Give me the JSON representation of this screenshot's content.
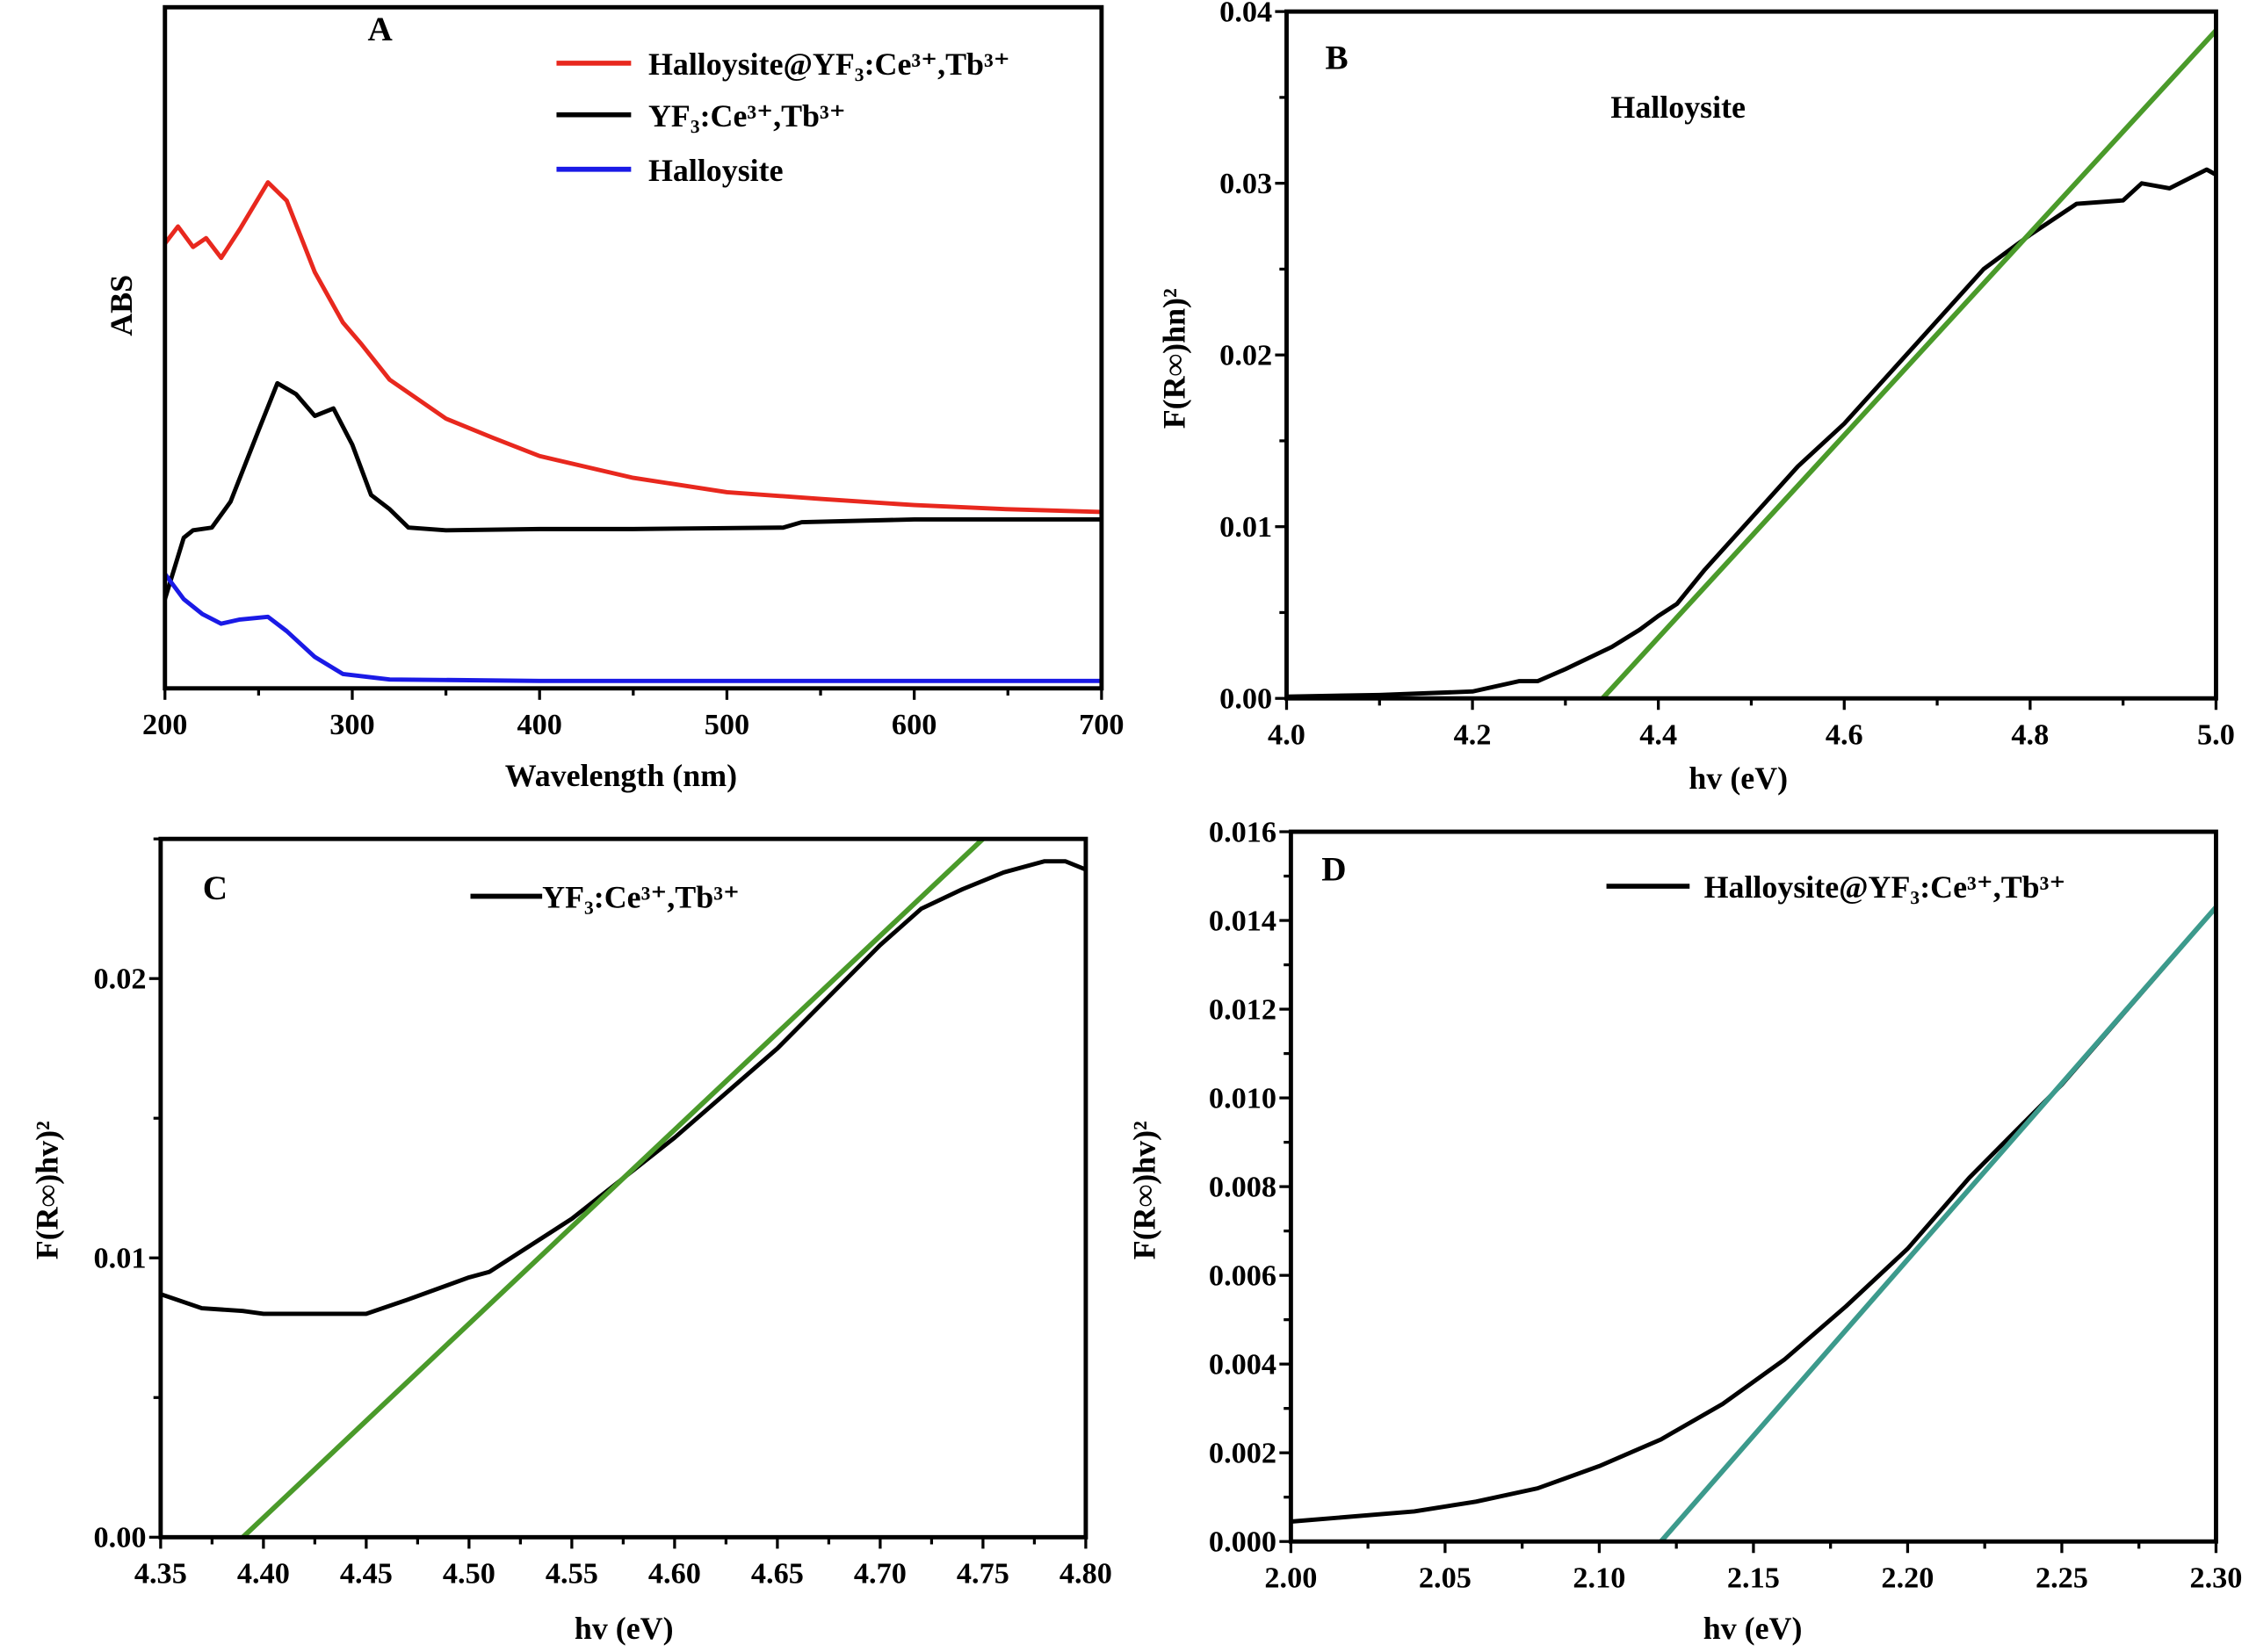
{
  "chart_data": [
    {
      "panel": "A",
      "type": "line",
      "xlabel": "Wavelength (nm)",
      "ylabel": "ABS",
      "xlim": [
        200,
        700
      ],
      "ylim": [
        0,
        1
      ],
      "y_ticks_shown": false,
      "x_ticks": [
        200,
        300,
        400,
        500,
        600,
        700
      ],
      "x_tick_labels": [
        "200",
        "300",
        "400",
        "500",
        "600",
        "700"
      ],
      "x_minor_step": 50,
      "grid": false,
      "legend_position": "top-right",
      "series": [
        {
          "name": "Halloysite@YF₃:Ce³⁺,Tb³⁺",
          "color": "#e8281e",
          "x": [
            200,
            207,
            215,
            222,
            230,
            240,
            255,
            265,
            280,
            295,
            305,
            320,
            350,
            375,
            400,
            450,
            500,
            550,
            600,
            650,
            700
          ],
          "y": [
            0.653,
            0.678,
            0.648,
            0.661,
            0.632,
            0.674,
            0.743,
            0.716,
            0.611,
            0.537,
            0.505,
            0.453,
            0.396,
            0.368,
            0.341,
            0.309,
            0.288,
            0.278,
            0.269,
            0.263,
            0.259
          ]
        },
        {
          "name": "YF₃:Ce³⁺,Tb³⁺",
          "color": "#000000",
          "x": [
            200,
            210,
            215,
            225,
            235,
            250,
            260,
            270,
            280,
            290,
            300,
            310,
            320,
            330,
            350,
            400,
            450,
            530,
            540,
            600,
            700
          ],
          "y": [
            0.131,
            0.221,
            0.232,
            0.236,
            0.274,
            0.379,
            0.448,
            0.432,
            0.4,
            0.411,
            0.358,
            0.284,
            0.263,
            0.236,
            0.232,
            0.234,
            0.234,
            0.236,
            0.244,
            0.248,
            0.248
          ]
        },
        {
          "name": "Halloysite",
          "color": "#1a1ae6",
          "x": [
            200,
            210,
            220,
            230,
            240,
            255,
            265,
            280,
            295,
            320,
            400,
            700
          ],
          "y": [
            0.168,
            0.131,
            0.109,
            0.095,
            0.101,
            0.105,
            0.084,
            0.046,
            0.021,
            0.013,
            0.011,
            0.011
          ]
        }
      ]
    },
    {
      "panel": "B",
      "type": "line",
      "annotation": "Halloysite",
      "xlabel": "hv (eV)",
      "ylabel": "F(R∞)hn)²",
      "xlim": [
        4.0,
        5.0
      ],
      "ylim": [
        0,
        0.04
      ],
      "x_ticks": [
        4.0,
        4.2,
        4.4,
        4.6,
        4.8,
        5.0
      ],
      "x_tick_labels": [
        "4.0",
        "4.2",
        "4.4",
        "4.6",
        "4.8",
        "5.0"
      ],
      "x_minor_step": 0.1,
      "y_ticks": [
        0,
        0.01,
        0.02,
        0.03,
        0.04
      ],
      "y_tick_labels": [
        "0.00",
        "0.01",
        "0.02",
        "0.03",
        "0.04"
      ],
      "y_minor_step": 0.005,
      "grid": false,
      "series": [
        {
          "color": "#000000",
          "x": [
            4.0,
            4.1,
            4.2,
            4.25,
            4.27,
            4.3,
            4.35,
            4.38,
            4.4,
            4.42,
            4.45,
            4.5,
            4.55,
            4.6,
            4.65,
            4.7,
            4.75,
            4.8,
            4.85,
            4.9,
            4.92,
            4.95,
            4.99,
            5.0
          ],
          "y": [
            0.0001,
            0.0002,
            0.0004,
            0.001,
            0.001,
            0.0017,
            0.003,
            0.004,
            0.0048,
            0.0055,
            0.0075,
            0.0105,
            0.0135,
            0.016,
            0.019,
            0.022,
            0.025,
            0.027,
            0.0288,
            0.029,
            0.03,
            0.0297,
            0.0308,
            0.0305
          ]
        },
        {
          "color": "#4a9a2a",
          "fit": true,
          "x": [
            4.34,
            5.0
          ],
          "y": [
            0,
            0.0389
          ]
        }
      ]
    },
    {
      "panel": "C",
      "type": "line",
      "xlabel": "hv (eV)",
      "ylabel": "F(R∞)hv)²",
      "xlim": [
        4.35,
        4.8
      ],
      "ylim": [
        0,
        0.025
      ],
      "x_ticks": [
        4.35,
        4.4,
        4.45,
        4.5,
        4.55,
        4.6,
        4.65,
        4.7,
        4.75,
        4.8
      ],
      "x_tick_labels": [
        "4.35",
        "4.40",
        "4.45",
        "4.50",
        "4.55",
        "4.60",
        "4.65",
        "4.70",
        "4.75",
        "4.80"
      ],
      "x_minor_step": 0.025,
      "y_ticks": [
        0,
        0.01,
        0.02
      ],
      "y_tick_labels": [
        "0.00",
        "0.01",
        "0.02"
      ],
      "y_minor_step": 0.005,
      "grid": false,
      "legend_position": "top-center",
      "series": [
        {
          "name": "YF₃:Ce³⁺,Tb³⁺",
          "color": "#000000",
          "x": [
            4.35,
            4.37,
            4.39,
            4.4,
            4.45,
            4.47,
            4.5,
            4.51,
            4.55,
            4.6,
            4.65,
            4.7,
            4.72,
            4.74,
            4.76,
            4.78,
            4.79,
            4.8
          ],
          "y": [
            0.0087,
            0.0082,
            0.0081,
            0.008,
            0.008,
            0.0085,
            0.0093,
            0.0095,
            0.0114,
            0.0143,
            0.0175,
            0.0212,
            0.0225,
            0.0232,
            0.0238,
            0.0242,
            0.0242,
            0.0239
          ]
        },
        {
          "color": "#4a9a2a",
          "fit": true,
          "x": [
            4.39,
            4.75
          ],
          "y": [
            0,
            0.025
          ]
        }
      ]
    },
    {
      "panel": "D",
      "type": "line",
      "xlabel": "hv (eV)",
      "ylabel": "F(R∞)hv)²",
      "xlim": [
        2.0,
        2.3
      ],
      "ylim": [
        0,
        0.016
      ],
      "x_ticks": [
        2.0,
        2.05,
        2.1,
        2.15,
        2.2,
        2.25,
        2.3
      ],
      "x_tick_labels": [
        "2.00",
        "2.05",
        "2.10",
        "2.15",
        "2.20",
        "2.25",
        "2.30"
      ],
      "x_minor_step": 0.025,
      "y_ticks": [
        0,
        0.002,
        0.004,
        0.006,
        0.008,
        0.01,
        0.012,
        0.014,
        0.016
      ],
      "y_tick_labels": [
        "0.000",
        "0.002",
        "0.004",
        "0.006",
        "0.008",
        "0.010",
        "0.012",
        "0.014",
        "0.016"
      ],
      "y_minor_step": 0.001,
      "grid": false,
      "legend_position": "top-right",
      "series": [
        {
          "name": "Halloysite@YF₃:Ce³⁺,Tb³⁺",
          "color": "#000000",
          "x": [
            2.0,
            2.04,
            2.06,
            2.08,
            2.1,
            2.12,
            2.14,
            2.16,
            2.18,
            2.2,
            2.22,
            2.25,
            2.28,
            2.3
          ],
          "y": [
            0.00045,
            0.00068,
            0.0009,
            0.0012,
            0.0017,
            0.0023,
            0.0031,
            0.0041,
            0.0053,
            0.0066,
            0.0082,
            0.0103,
            0.0127,
            0.0143
          ]
        },
        {
          "color": "#3c9a8c",
          "fit": true,
          "x": [
            2.12,
            2.3
          ],
          "y": [
            0,
            0.0143
          ]
        }
      ]
    }
  ]
}
